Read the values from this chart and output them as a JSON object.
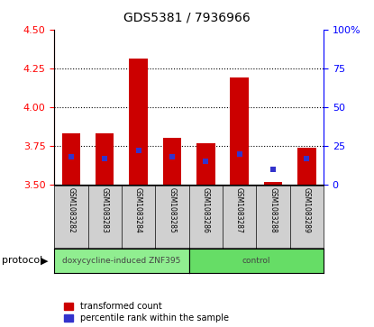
{
  "title": "GDS5381 / 7936966",
  "samples": [
    "GSM1083282",
    "GSM1083283",
    "GSM1083284",
    "GSM1083285",
    "GSM1083286",
    "GSM1083287",
    "GSM1083288",
    "GSM1083289"
  ],
  "transformed_counts": [
    3.83,
    3.83,
    4.31,
    3.8,
    3.77,
    4.19,
    3.52,
    3.74
  ],
  "percentile_ranks": [
    18,
    17,
    22,
    18,
    15,
    20,
    10,
    17
  ],
  "bar_bottom": 3.5,
  "ylim": [
    3.5,
    4.5
  ],
  "y_ticks": [
    3.5,
    3.75,
    4.0,
    4.25,
    4.5
  ],
  "y2_ticks": [
    0,
    25,
    50,
    75,
    100
  ],
  "bar_color": "#cc0000",
  "percentile_color": "#3333cc",
  "groups": [
    {
      "label": "doxycycline-induced ZNF395",
      "start": 0,
      "end": 4,
      "color": "#90ee90"
    },
    {
      "label": "control",
      "start": 4,
      "end": 8,
      "color": "#66dd66"
    }
  ],
  "protocol_label": "protocol",
  "legend_items": [
    {
      "label": "transformed count",
      "color": "#cc0000"
    },
    {
      "label": "percentile rank within the sample",
      "color": "#3333cc"
    }
  ],
  "bar_width": 0.55,
  "sample_box_color": "#d0d0d0",
  "plot_bg": "#ffffff"
}
